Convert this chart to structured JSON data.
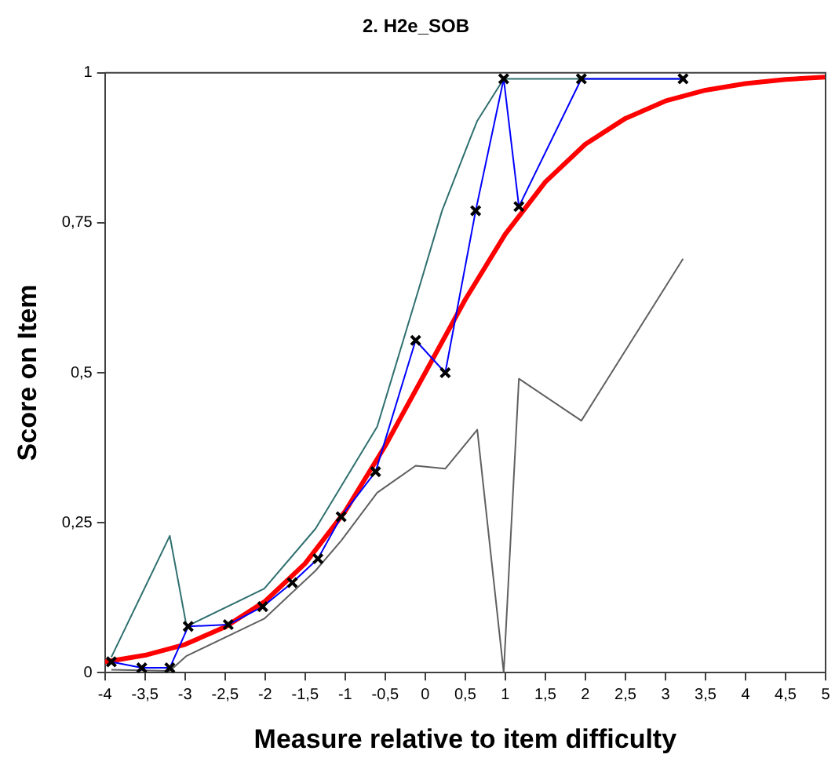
{
  "chart_data": {
    "type": "line",
    "title": "2. H2e_SOB",
    "xlabel": "Measure relative to item difficulty",
    "ylabel": "Score on Item",
    "xlim": [
      -4,
      5
    ],
    "ylim": [
      0,
      1
    ],
    "xticks": [
      -4,
      {
        "value": -3.5,
        "label": "-3,5"
      },
      -3,
      {
        "value": -2.5,
        "label": "-2,5"
      },
      -2,
      {
        "value": -1.5,
        "label": "-1,5"
      },
      -1,
      {
        "value": -0.5,
        "label": "-0,5"
      },
      0,
      {
        "value": 0.5,
        "label": "0,5"
      },
      1,
      {
        "value": 1.5,
        "label": "1,5"
      },
      2,
      {
        "value": 2.5,
        "label": "2,5"
      },
      3,
      {
        "value": 3.5,
        "label": "3,5"
      },
      4,
      {
        "value": 4.5,
        "label": "4,5"
      },
      5
    ],
    "yticks": [
      0,
      {
        "value": 0.25,
        "label": "0,25"
      },
      {
        "value": 0.5,
        "label": "0,5"
      },
      {
        "value": 0.75,
        "label": "0,75"
      },
      1
    ],
    "grid": false,
    "legend": false,
    "line_style": "solid",
    "series": [
      {
        "color": "#2f6f6f",
        "marker": "none",
        "x": [
          -3.92,
          -3.19,
          -2.98,
          -2.01,
          -1.37,
          -0.6,
          -0.08,
          0.21,
          0.56,
          0.65,
          0.98,
          1.95,
          3.22
        ],
        "values": [
          0.026,
          0.228,
          0.077,
          0.14,
          0.24,
          0.41,
          0.64,
          0.77,
          0.89,
          0.92,
          0.99,
          0.99,
          0.99
        ]
      },
      {
        "color": "#606060",
        "marker": "none",
        "x": [
          -3.92,
          -3.19,
          -2.98,
          -2.01,
          -1.37,
          -1.05,
          -0.6,
          -0.12,
          0.25,
          0.65,
          0.98,
          1.17,
          1.95,
          3.22
        ],
        "values": [
          0.005,
          0.003,
          0.028,
          0.09,
          0.17,
          0.22,
          0.3,
          0.345,
          0.34,
          0.405,
          0.0,
          0.49,
          0.42,
          0.69
        ]
      },
      {
        "color": "#ff0000",
        "marker": "none",
        "x": [
          -4,
          -3.5,
          -3,
          -2.5,
          -2,
          -1.5,
          -1,
          -0.5,
          0,
          0.5,
          1,
          1.5,
          2,
          2.5,
          3,
          3.5,
          4,
          4.5,
          5
        ],
        "values": [
          0.018,
          0.029,
          0.047,
          0.076,
          0.119,
          0.182,
          0.269,
          0.378,
          0.5,
          0.622,
          0.731,
          0.818,
          0.881,
          0.924,
          0.953,
          0.971,
          0.982,
          0.989,
          0.993
        ]
      },
      {
        "color": "#0000ff",
        "marker": "cross",
        "x": [
          -3.92,
          -3.54,
          -3.19,
          -2.96,
          -2.46,
          -2.03,
          -1.66,
          -1.34,
          -1.05,
          -0.62,
          -0.12,
          0.25,
          0.63,
          0.98,
          1.17,
          1.95,
          3.22
        ],
        "values": [
          0.018,
          0.008,
          0.008,
          0.077,
          0.08,
          0.11,
          0.15,
          0.19,
          0.26,
          0.335,
          0.554,
          0.5,
          0.77,
          0.99,
          0.777,
          0.99,
          0.99
        ]
      }
    ]
  }
}
